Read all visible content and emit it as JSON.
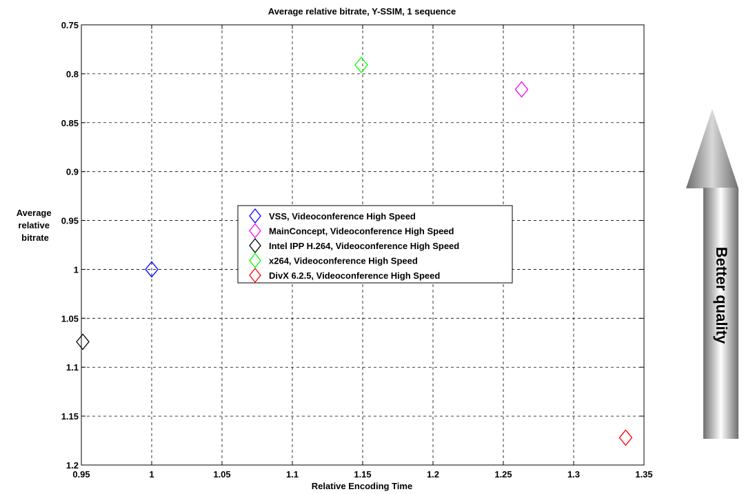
{
  "chart_data": {
    "type": "scatter",
    "title": "Average relative bitrate, Y-SSIM, 1 sequence",
    "xlabel": "Relative Encoding Time",
    "ylabel": [
      "Average",
      "relative",
      "bitrate"
    ],
    "xlim": [
      0.95,
      1.35
    ],
    "ylim": [
      0.75,
      1.2
    ],
    "y_reversed": true,
    "grid": true,
    "marker": "diamond",
    "x_ticks": [
      "0.95",
      "1",
      "1.05",
      "1.1",
      "1.15",
      "1.2",
      "1.25",
      "1.3",
      "1.35"
    ],
    "y_ticks": [
      "0.75",
      "0.8",
      "0.85",
      "0.9",
      "0.95",
      "1",
      "1.05",
      "1.1",
      "1.15",
      "1.2"
    ],
    "legend_position": "center",
    "series": [
      {
        "name": "VSS, Videoconference High Speed",
        "color": "#0000ff",
        "x": [
          1.0
        ],
        "y": [
          1.0
        ]
      },
      {
        "name": "MainConcept, Videoconference High Speed",
        "color": "#ff00ff",
        "x": [
          1.263
        ],
        "y": [
          0.816
        ]
      },
      {
        "name": "Intel IPP H.264, Videoconference High Speed",
        "color": "#000000",
        "x": [
          0.951
        ],
        "y": [
          1.074
        ]
      },
      {
        "name": "x264, Videoconference High Speed",
        "color": "#00ff00",
        "x": [
          1.149
        ],
        "y": [
          0.791
        ]
      },
      {
        "name": "DivX 6.2.5, Videoconference High Speed",
        "color": "#ff0000",
        "x": [
          1.337
        ],
        "y": [
          1.172
        ]
      }
    ]
  },
  "annotation": {
    "arrow_label": "Better quality",
    "arrow_direction": "up"
  }
}
